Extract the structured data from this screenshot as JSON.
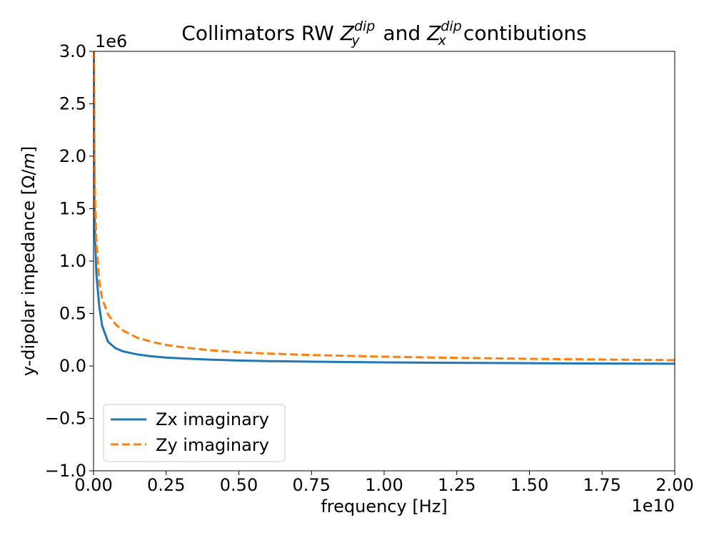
{
  "chart_data": {
    "type": "line",
    "title": {
      "prefix": "Collimators RW ",
      "z1_base": "Z",
      "z1_sup": "dip",
      "z1_sub": "y",
      "mid": " and ",
      "z2_base": "Z",
      "z2_sup": "dip",
      "z2_sub": "x",
      "suffix": "contibutions"
    },
    "xlabel": "frequency [Hz]",
    "ylabel": {
      "text": "y-dipolar impedance [Ω/",
      "unit_italic": "m",
      "close": "]"
    },
    "x_offset_text": "1e10",
    "y_offset_text": "1e6",
    "xlim": [
      0,
      20000000000
    ],
    "ylim": [
      -1000000,
      3000000
    ],
    "x_scale_factor": 10000000000,
    "y_scale_factor": 1000000,
    "x_ticks": [
      0,
      2500000000,
      5000000000,
      7500000000,
      10000000000,
      12500000000,
      15000000000,
      17500000000,
      20000000000
    ],
    "x_tick_labels": [
      "0.00",
      "0.25",
      "0.50",
      "0.75",
      "1.00",
      "1.25",
      "1.50",
      "1.75",
      "2.00"
    ],
    "y_ticks": [
      -1000000,
      -500000,
      0,
      500000,
      1000000,
      1500000,
      2000000,
      2500000,
      3000000
    ],
    "y_tick_labels": [
      "−1.0",
      "−0.5",
      "0.0",
      "0.5",
      "1.0",
      "1.5",
      "2.0",
      "2.5",
      "3.0"
    ],
    "grid": false,
    "legend_position": "lower-left",
    "series": [
      {
        "name": "Zx imaginary",
        "color": "#1f77b4",
        "dash": "solid",
        "x": [
          10000000,
          30000000,
          50000000,
          100000000,
          200000000,
          300000000,
          500000000,
          750000000,
          1000000000,
          1500000000,
          2000000000,
          2500000000,
          3000000000,
          4000000000,
          5000000000,
          6000000000,
          7500000000,
          10000000000,
          12500000000,
          15000000000,
          17500000000,
          20000000000
        ],
        "y": [
          3000000,
          1580000,
          1230000,
          870000,
          560000,
          380000,
          230000,
          170000,
          140000,
          110000,
          92000,
          80000,
          72000,
          60000,
          52000,
          46000,
          41000,
          34000,
          30000,
          26000,
          23000,
          21000
        ]
      },
      {
        "name": "Zy imaginary",
        "color": "#ff7f0e",
        "dash": "dashed",
        "x": [
          10000000,
          30000000,
          50000000,
          100000000,
          200000000,
          300000000,
          500000000,
          750000000,
          1000000000,
          1500000000,
          2000000000,
          2500000000,
          3000000000,
          4000000000,
          5000000000,
          6000000000,
          7500000000,
          10000000000,
          12500000000,
          15000000000,
          17500000000,
          20000000000
        ],
        "y": [
          3000000,
          2050000,
          1600000,
          1170000,
          800000,
          640000,
          490000,
          400000,
          340000,
          270000,
          230000,
          200000,
          180000,
          150000,
          130000,
          118000,
          104000,
          88000,
          77000,
          68000,
          61000,
          55000
        ]
      }
    ]
  }
}
